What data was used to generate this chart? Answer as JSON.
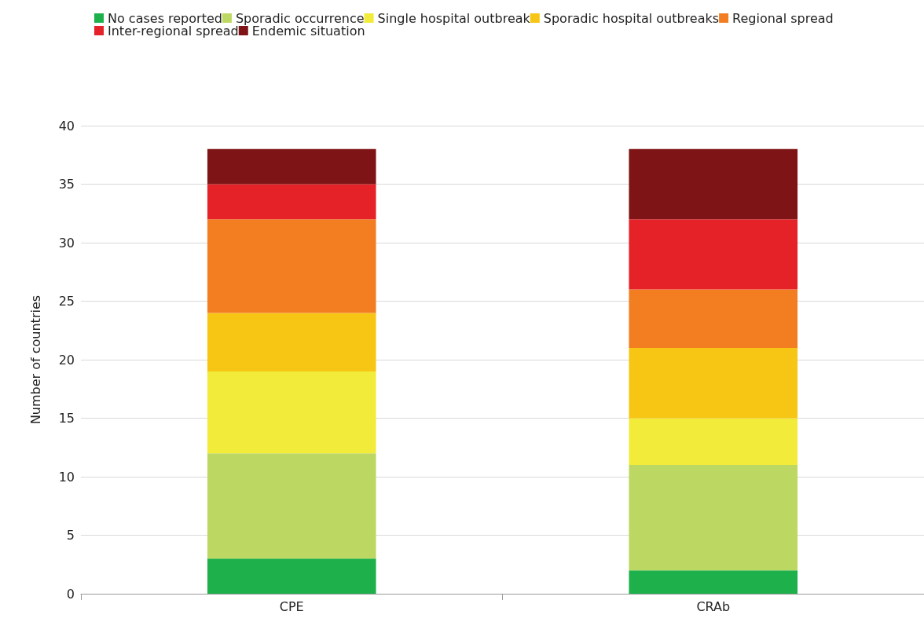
{
  "chart_data": {
    "type": "bar",
    "stacked": true,
    "ylabel": "Number of countries",
    "categories": [
      "CPE",
      "CRAb"
    ],
    "series": [
      {
        "name": "No cases reported",
        "color": "#1db04b",
        "values": [
          3,
          2
        ]
      },
      {
        "name": "Sporadic occurrence",
        "color": "#bdd862",
        "values": [
          9,
          9
        ]
      },
      {
        "name": "Single hospital outbreak",
        "color": "#f2eb3a",
        "values": [
          7,
          4
        ]
      },
      {
        "name": "Sporadic hospital outbreaks",
        "color": "#f7c514",
        "values": [
          5,
          6
        ]
      },
      {
        "name": "Regional spread",
        "color": "#f37e22",
        "values": [
          8,
          5
        ]
      },
      {
        "name": "Inter-regional spread",
        "color": "#e52228",
        "values": [
          3,
          6
        ]
      },
      {
        "name": "Endemic situation",
        "color": "#7f1416",
        "values": [
          3,
          6
        ]
      }
    ],
    "ylim": [
      0,
      40
    ],
    "yticks": [
      0,
      5,
      10,
      15,
      20,
      25,
      30,
      35,
      40
    ],
    "grid": "y",
    "legend": "top"
  }
}
